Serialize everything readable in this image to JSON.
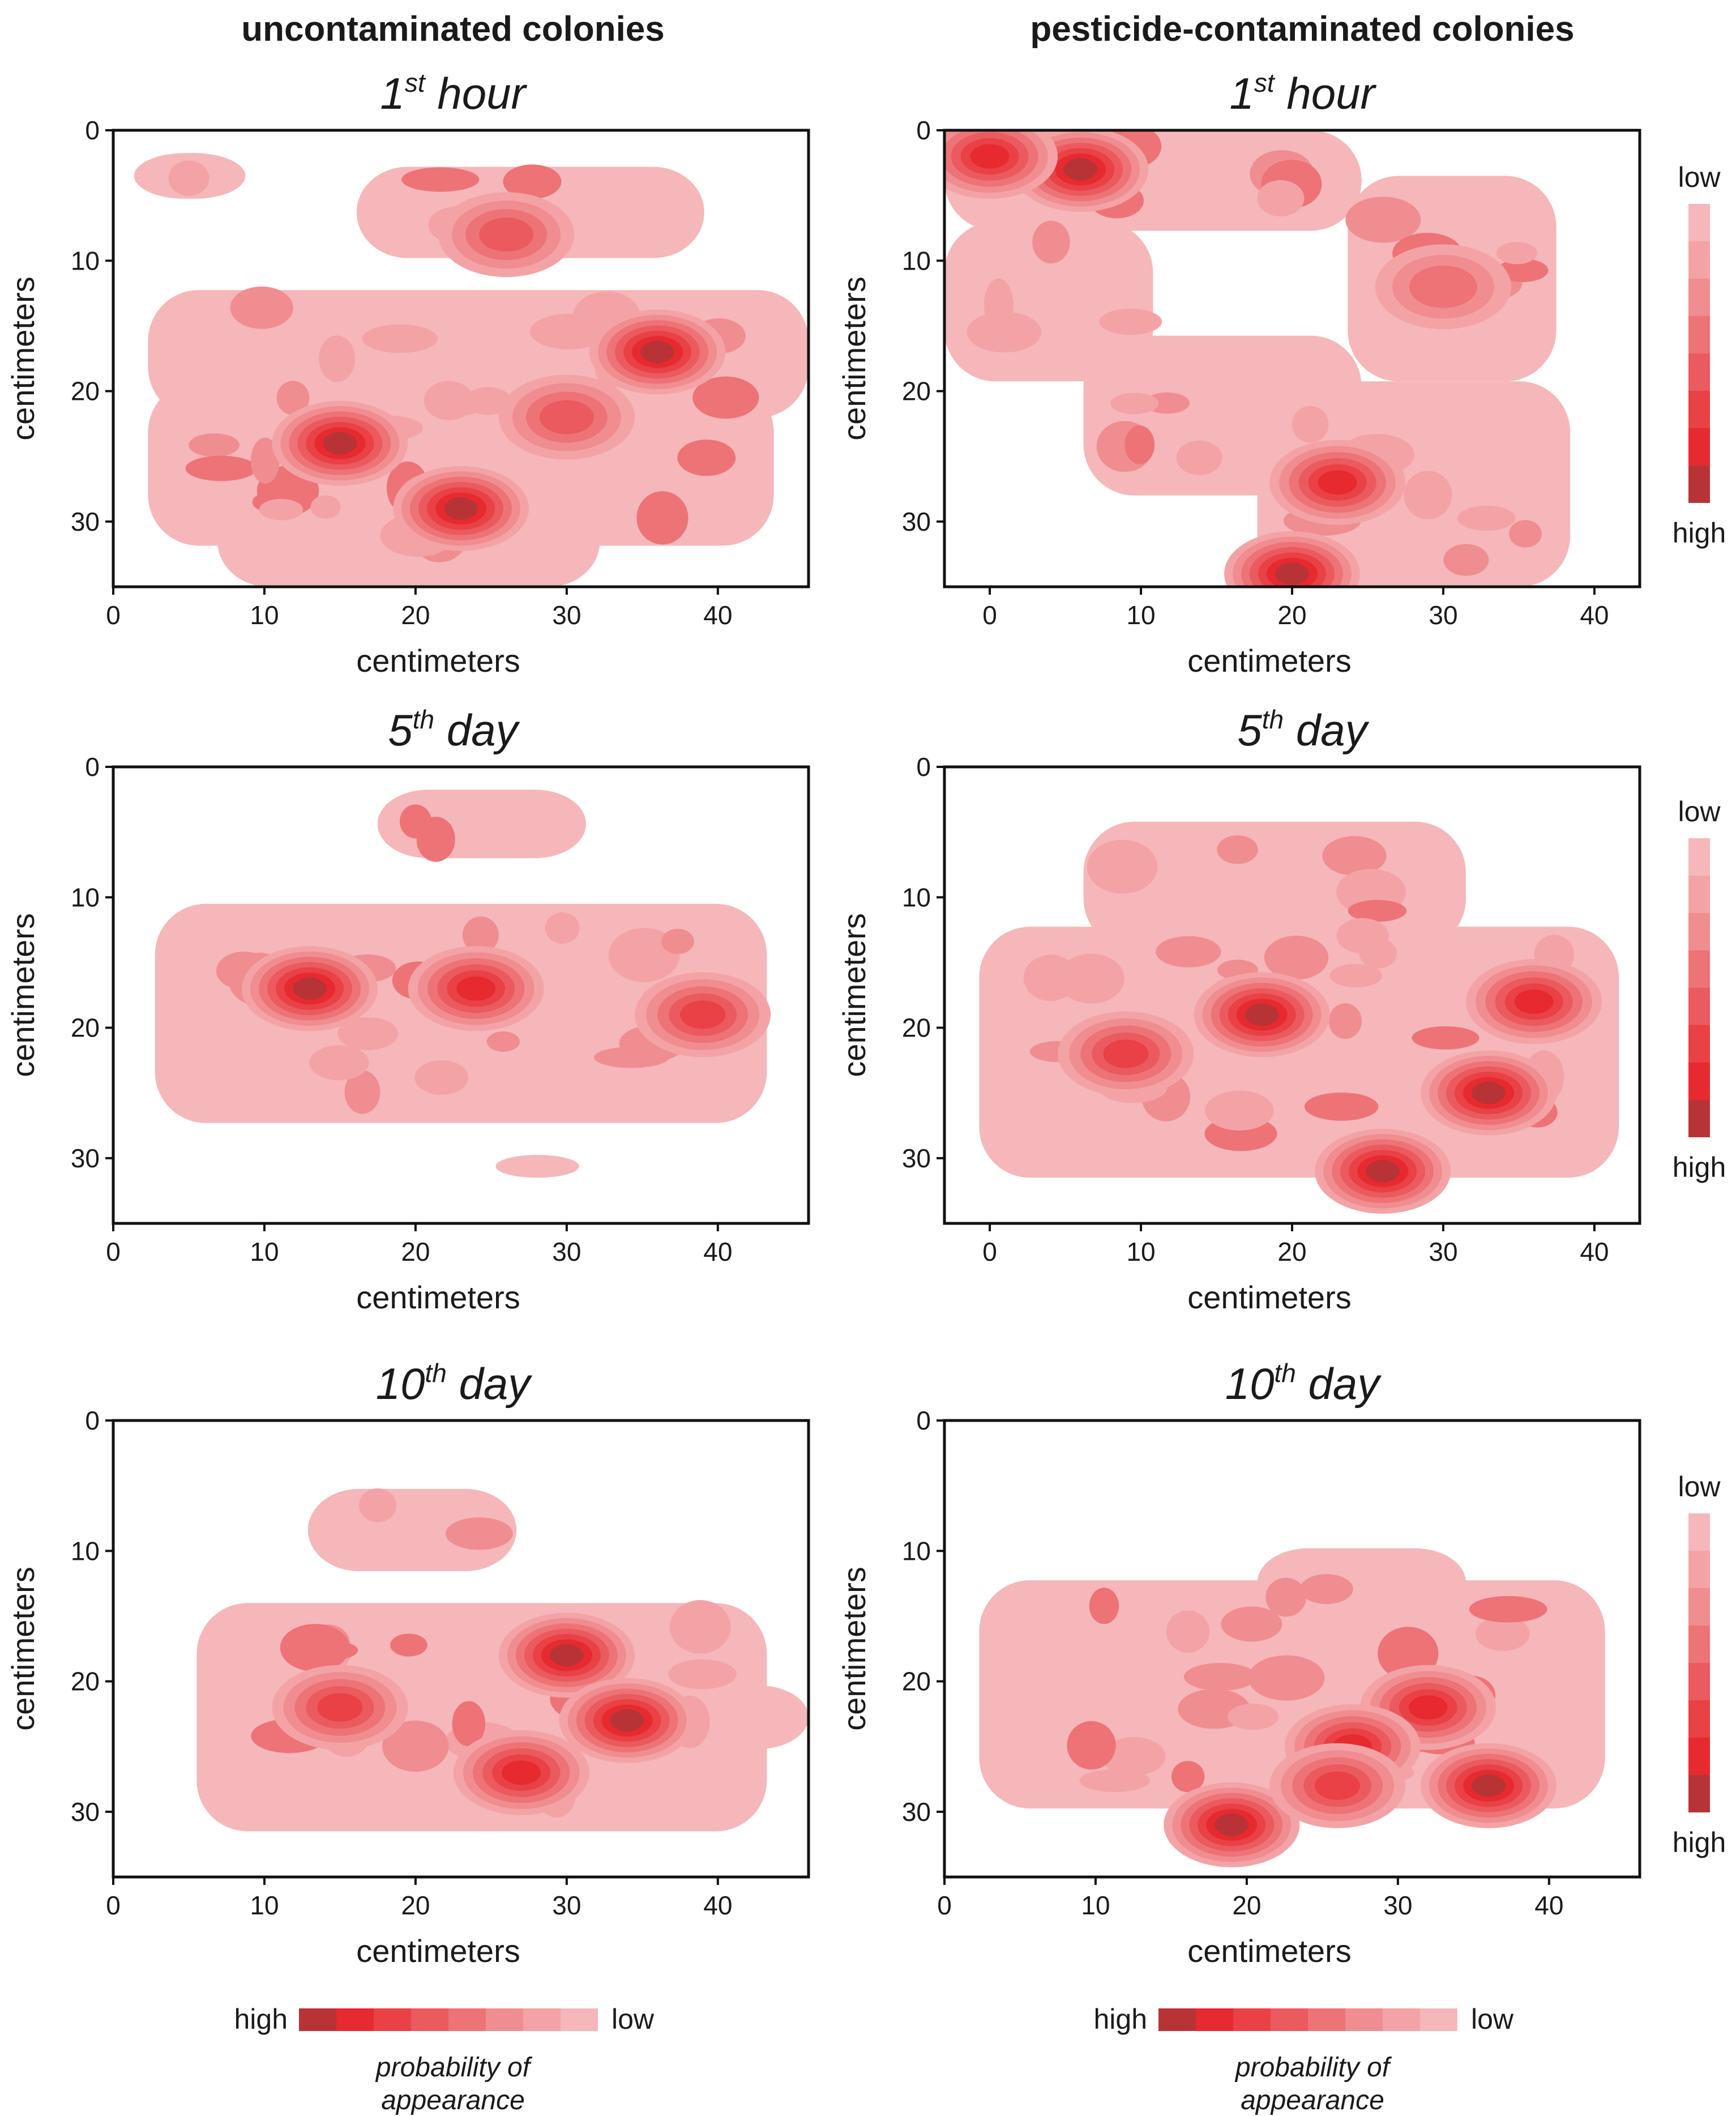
{
  "column_titles": [
    "uncontaminated colonies",
    "pesticide-contaminated colonies"
  ],
  "panel_titles": [
    {
      "ord": "1",
      "sup": "st",
      "rest": " hour"
    },
    {
      "ord": "5",
      "sup": "th",
      "rest": " day"
    },
    {
      "ord": "10",
      "sup": "th",
      "rest": " day"
    }
  ],
  "axis_label": "centimeters",
  "colorbar": {
    "low": "low",
    "high": "high",
    "caption_line1": "probability of",
    "caption_line2": "appearance"
  },
  "colors": [
    "#f5b7b9",
    "#f3a3a6",
    "#f08d90",
    "#ed7376",
    "#ea5a5e",
    "#e94145",
    "#e62a30",
    "#b83336"
  ],
  "chart_data": [
    {
      "type": "heatmap",
      "title": "1st hour",
      "group": "uncontaminated colonies",
      "xlabel": "centimeters",
      "ylabel": "centimeters",
      "xlim": [
        0,
        46
      ],
      "ylim": [
        0,
        35
      ],
      "xticks": [
        0,
        10,
        20,
        30,
        40
      ],
      "yticks": [
        0,
        10,
        20,
        30
      ],
      "hotspots": [
        {
          "x": 15,
          "y": 24,
          "level": 8
        },
        {
          "x": 23,
          "y": 29,
          "level": 8
        },
        {
          "x": 36,
          "y": 17,
          "level": 8
        },
        {
          "x": 26,
          "y": 8,
          "level": 5
        },
        {
          "x": 30,
          "y": 22,
          "level": 5
        }
      ]
    },
    {
      "type": "heatmap",
      "title": "1st hour",
      "group": "pesticide-contaminated colonies",
      "xlabel": "centimeters",
      "ylabel": "centimeters",
      "xlim": [
        -3,
        43
      ],
      "ylim": [
        0,
        35
      ],
      "xticks": [
        0,
        10,
        20,
        30,
        40
      ],
      "yticks": [
        0,
        10,
        20,
        30
      ],
      "hotspots": [
        {
          "x": 6,
          "y": 3,
          "level": 8
        },
        {
          "x": 0,
          "y": 2,
          "level": 7
        },
        {
          "x": 23,
          "y": 27,
          "level": 7
        },
        {
          "x": 20,
          "y": 34,
          "level": 8
        },
        {
          "x": 30,
          "y": 12,
          "level": 4
        }
      ]
    },
    {
      "type": "heatmap",
      "title": "5th day",
      "group": "uncontaminated colonies",
      "xlabel": "centimeters",
      "ylabel": "centimeters",
      "xlim": [
        0,
        46
      ],
      "ylim": [
        0,
        35
      ],
      "xticks": [
        0,
        10,
        20,
        30,
        40
      ],
      "yticks": [
        0,
        10,
        20,
        30
      ],
      "hotspots": [
        {
          "x": 13,
          "y": 17,
          "level": 8
        },
        {
          "x": 24,
          "y": 17,
          "level": 7
        },
        {
          "x": 39,
          "y": 19,
          "level": 6
        }
      ]
    },
    {
      "type": "heatmap",
      "title": "5th day",
      "group": "pesticide-contaminated colonies",
      "xlabel": "centimeters",
      "ylabel": "centimeters",
      "xlim": [
        -3,
        43
      ],
      "ylim": [
        0,
        35
      ],
      "xticks": [
        0,
        10,
        20,
        30,
        40
      ],
      "yticks": [
        0,
        10,
        20,
        30
      ],
      "hotspots": [
        {
          "x": 18,
          "y": 19,
          "level": 8
        },
        {
          "x": 26,
          "y": 31,
          "level": 8
        },
        {
          "x": 33,
          "y": 25,
          "level": 8
        },
        {
          "x": 36,
          "y": 18,
          "level": 7
        },
        {
          "x": 9,
          "y": 22,
          "level": 6
        }
      ]
    },
    {
      "type": "heatmap",
      "title": "10th day",
      "group": "uncontaminated colonies",
      "xlabel": "centimeters",
      "ylabel": "centimeters",
      "xlim": [
        0,
        46
      ],
      "ylim": [
        0,
        35
      ],
      "xticks": [
        0,
        10,
        20,
        30,
        40
      ],
      "yticks": [
        0,
        10,
        20,
        30
      ],
      "hotspots": [
        {
          "x": 30,
          "y": 18,
          "level": 8
        },
        {
          "x": 34,
          "y": 23,
          "level": 8
        },
        {
          "x": 27,
          "y": 27,
          "level": 7
        },
        {
          "x": 15,
          "y": 22,
          "level": 6
        }
      ]
    },
    {
      "type": "heatmap",
      "title": "10th day",
      "group": "pesticide-contaminated colonies",
      "xlabel": "centimeters",
      "ylabel": "centimeters",
      "xlim": [
        0,
        46
      ],
      "ylim": [
        0,
        35
      ],
      "xticks": [
        0,
        10,
        20,
        30,
        40
      ],
      "yticks": [
        0,
        10,
        20,
        30
      ],
      "hotspots": [
        {
          "x": 19,
          "y": 31,
          "level": 8
        },
        {
          "x": 36,
          "y": 28,
          "level": 8
        },
        {
          "x": 32,
          "y": 22,
          "level": 7
        },
        {
          "x": 27,
          "y": 25,
          "level": 7
        },
        {
          "x": 26,
          "y": 28,
          "level": 6
        }
      ]
    }
  ]
}
